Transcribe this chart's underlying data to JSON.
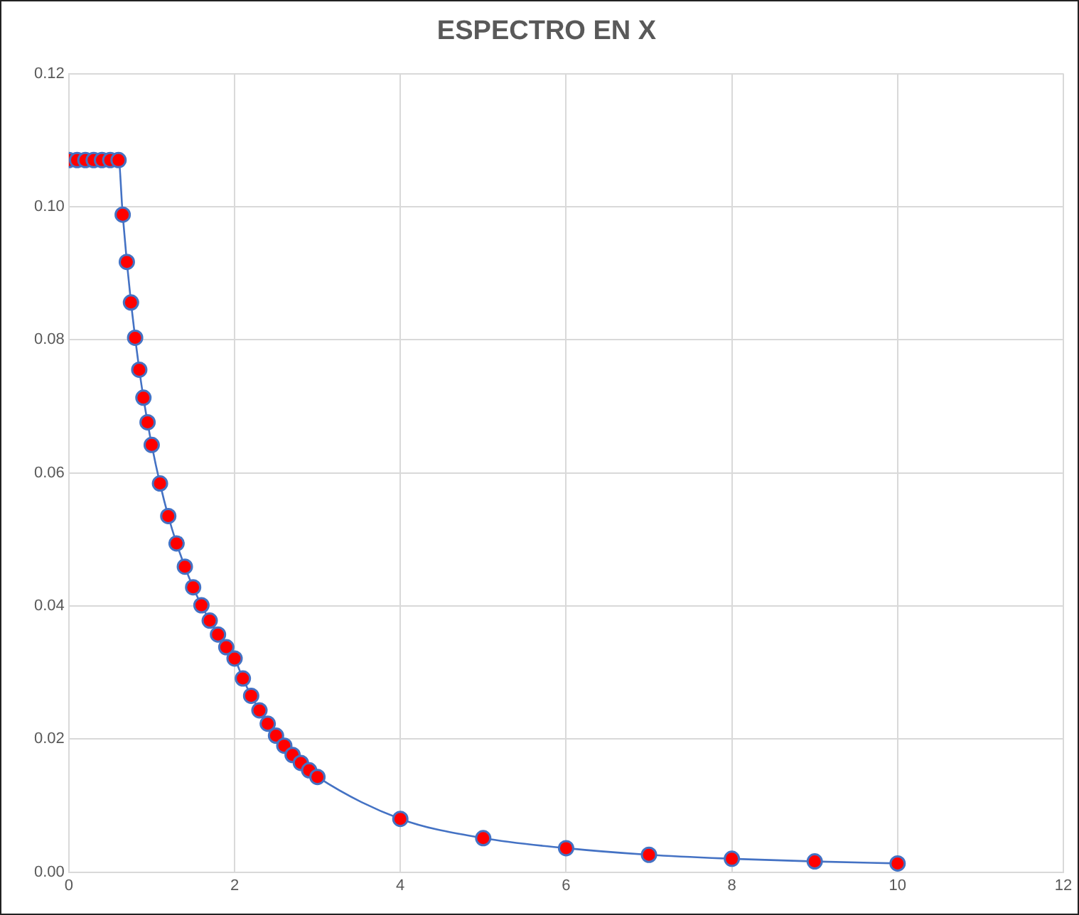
{
  "chart_data": {
    "type": "line",
    "title": "ESPECTRO EN X",
    "x": [
      0,
      0.1,
      0.2,
      0.3,
      0.4,
      0.5,
      0.6,
      0.65,
      0.7,
      0.75,
      0.8,
      0.85,
      0.9,
      0.95,
      1.0,
      1.1,
      1.2,
      1.3,
      1.4,
      1.5,
      1.6,
      1.7,
      1.8,
      1.9,
      2.0,
      2.1,
      2.2,
      2.3,
      2.4,
      2.5,
      2.6,
      2.7,
      2.8,
      2.9,
      3.0,
      4,
      5,
      6,
      7,
      8,
      9,
      10
    ],
    "series": [
      {
        "color": "#4472c4",
        "colors": [
          "#ff0000",
          "#ff0000",
          "#ff0000",
          "#ff0000",
          "#ff0000",
          "#ff0000",
          "#ff0000",
          "#ff0000",
          "#ff0000",
          "#ff0000",
          "#ff0000",
          "#ff0000",
          "#ff0000",
          "#ff0000",
          "#ff0000",
          "#ff0000",
          "#ff0000",
          "#ff0000",
          "#ff0000",
          "#ff0000",
          "#ff0000",
          "#ff0000",
          "#ff0000",
          "#ff0000",
          "#ff0000",
          "#ff0000",
          "#ff0000",
          "#ff0000",
          "#ff0000",
          "#ff0000",
          "#ff0000",
          "#ff0000",
          "#ff0000",
          "#ff0000",
          "#ff0000",
          "#ff0000",
          "#ff0000",
          "#ff0000",
          "#ff0000",
          "#ff0000",
          "#ff0000",
          "#ff0000"
        ],
        "values": [
          0.107,
          0.107,
          0.107,
          0.107,
          0.107,
          0.107,
          0.107,
          0.0988,
          0.0917,
          0.0856,
          0.0803,
          0.0755,
          0.0713,
          0.0676,
          0.0642,
          0.0584,
          0.0535,
          0.0494,
          0.0459,
          0.0428,
          0.0401,
          0.0378,
          0.0357,
          0.0338,
          0.0321,
          0.0291,
          0.0265,
          0.0243,
          0.0223,
          0.0205,
          0.019,
          0.0176,
          0.0164,
          0.0153,
          0.0143,
          0.008,
          0.0051,
          0.0036,
          0.0026,
          0.002,
          0.0016,
          0.0013
        ]
      }
    ],
    "xlim": [
      0,
      12
    ],
    "xticks": [
      0,
      2,
      4,
      6,
      8,
      10,
      12
    ],
    "ylim": [
      0,
      0.12
    ],
    "yticks": [
      {
        "value": 0,
        "label": "0.00"
      },
      {
        "value": 0.02,
        "label": "0.02"
      },
      {
        "value": 0.04,
        "label": "0.04"
      },
      {
        "value": 0.06,
        "label": "0.06"
      },
      {
        "value": 0.08,
        "label": "0.08"
      },
      {
        "value": 0.1,
        "label": "0.10"
      },
      {
        "value": 0.12,
        "label": "0.12"
      }
    ],
    "grid": true,
    "legend": false,
    "marker": "circle",
    "line_style": "solid"
  }
}
